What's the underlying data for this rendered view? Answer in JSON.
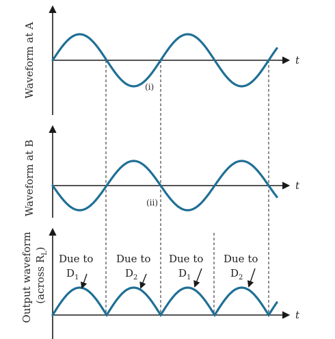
{
  "panels": {
    "a": {
      "ylabel": "Waveform at A",
      "axis_label": "t",
      "marker": "(i)"
    },
    "b": {
      "ylabel": "Waveform at B",
      "axis_label": "t",
      "marker": "(ii)"
    },
    "out": {
      "ylabel_line1": "Output waveform",
      "ylabel_line2": "(across R",
      "ylabel_sub": "L",
      "ylabel_close": ")",
      "axis_label": "t"
    }
  },
  "annotations": [
    {
      "text": "Due to",
      "diode": "D",
      "sub": "1"
    },
    {
      "text": "Due to",
      "diode": "D",
      "sub": "2"
    },
    {
      "text": "Due to",
      "diode": "D",
      "sub": "1"
    },
    {
      "text": "Due to",
      "diode": "D",
      "sub": "2"
    }
  ],
  "colors": {
    "wave": "#1f6f95",
    "axis": "#1a1a1a"
  }
}
